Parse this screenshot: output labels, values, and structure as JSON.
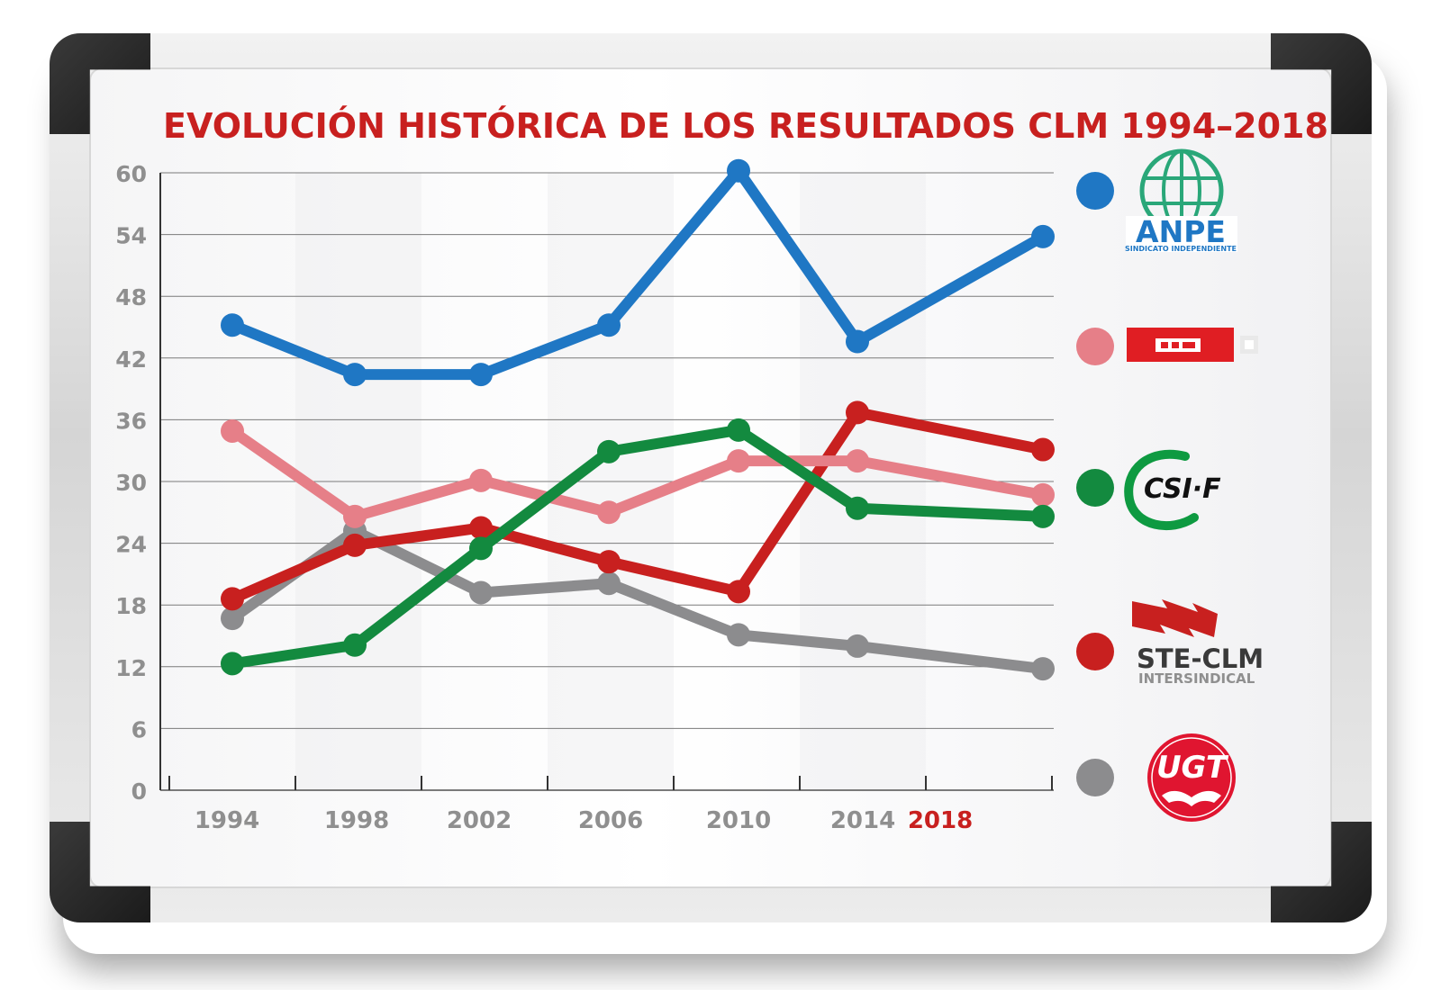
{
  "chart_data": {
    "type": "line",
    "title": "EVOLUCIÓN HISTÓRICA DE LOS RESULTADOS CLM 1994–2018",
    "xlabel": "",
    "ylabel": "",
    "x": [
      "1994",
      "1998",
      "2002",
      "2006",
      "2010",
      "2014",
      "2018"
    ],
    "highlight_x": "2018",
    "ylim": [
      0,
      60
    ],
    "yticks": [
      0,
      6,
      12,
      18,
      24,
      30,
      36,
      42,
      48,
      54,
      60
    ],
    "grid": true,
    "legend_position": "right",
    "series": [
      {
        "name": "ANPE",
        "color": "#1f77c4",
        "values": [
          45.2,
          40.4,
          40.4,
          45.2,
          60.2,
          43.6,
          53.8
        ]
      },
      {
        "name": "",
        "color": "#e67f88",
        "values": [
          34.9,
          26.6,
          30.1,
          27.0,
          32.0,
          32.0,
          28.7
        ]
      },
      {
        "name": "CSIF",
        "color": "#138a3f",
        "values": [
          12.3,
          14.1,
          23.5,
          32.9,
          35.0,
          27.4,
          26.6
        ]
      },
      {
        "name": "STE-CLM",
        "color": "#c8201f",
        "values": [
          18.6,
          23.8,
          25.5,
          22.2,
          19.3,
          36.7,
          33.1
        ]
      },
      {
        "name": "UGT",
        "color": "#8c8c8e",
        "values": [
          16.7,
          25.2,
          19.2,
          20.1,
          15.1,
          14.0,
          11.8
        ]
      }
    ]
  },
  "legend": {
    "anpe": {
      "name": "ANPE",
      "sub": "SINDICATO INDEPENDIENTE"
    },
    "csif": {
      "name": "CSI·F"
    },
    "ste": {
      "name": "STE-CLM",
      "sub": "INTERSINDICAL"
    },
    "ugt": {
      "name": "UGT"
    }
  }
}
